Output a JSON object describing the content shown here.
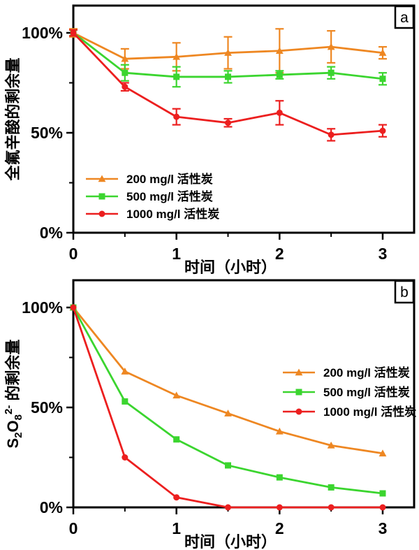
{
  "page": {
    "background": "#ffffff",
    "axis_color": "#000000"
  },
  "panels": [
    {
      "letter": "a"
    },
    {
      "letter": "b"
    }
  ],
  "chart_data": [
    {
      "panel_label": "a",
      "type": "line",
      "title": "",
      "xlabel": "时间（小时）",
      "ylabel": "全氟辛酸的剩余量",
      "ylabel_segments": [
        {
          "text": "全氟辛酸的剩余量"
        }
      ],
      "x": [
        0,
        0.5,
        1,
        1.5,
        2,
        2.5,
        3
      ],
      "xlim": [
        0,
        3.3
      ],
      "ylim_percent": [
        0,
        114
      ],
      "xticks": [
        {
          "v": 0,
          "label": "0"
        },
        {
          "v": 1,
          "label": "1"
        },
        {
          "v": 2,
          "label": "2"
        },
        {
          "v": 3,
          "label": "3"
        }
      ],
      "xminor": [
        0.5,
        1.5,
        2.5
      ],
      "yticks": [
        {
          "v": 0,
          "label": "0%"
        },
        {
          "v": 50,
          "label": "50%"
        },
        {
          "v": 100,
          "label": "100%"
        }
      ],
      "yminor": [
        25,
        75
      ],
      "grid": false,
      "error_bars": true,
      "legend_position": "inside-lower-left",
      "series": [
        {
          "name": "200 mg/l 活性炭",
          "color": "#EE8722",
          "marker": "triangle",
          "values": [
            100,
            87,
            88,
            90,
            91,
            93,
            90
          ],
          "errors": [
            2,
            5,
            7,
            8,
            11,
            8,
            3
          ]
        },
        {
          "name": "500 mg/l 活性炭",
          "color": "#3BD52F",
          "marker": "square",
          "values": [
            100,
            80,
            78,
            78,
            79,
            80,
            77
          ],
          "errors": [
            1.5,
            4,
            5,
            3,
            2,
            3,
            3
          ]
        },
        {
          "name": "1000 mg/l 活性炭",
          "color": "#EC1F1F",
          "marker": "circle",
          "values": [
            100,
            73,
            58,
            55,
            60,
            49,
            51
          ],
          "errors": [
            1.5,
            2,
            4,
            2,
            6,
            3,
            3
          ]
        }
      ]
    },
    {
      "panel_label": "b",
      "type": "line",
      "title": "",
      "xlabel": "时间（小时）",
      "ylabel": "S₂O₈²⁻ 的剩余量",
      "ylabel_segments": [
        {
          "text": "S"
        },
        {
          "text": "2",
          "shift": "sub"
        },
        {
          "text": "O"
        },
        {
          "text": "8",
          "shift": "sub"
        },
        {
          "text": "2-",
          "shift": "sup"
        },
        {
          "text": " 的剩余量"
        }
      ],
      "x": [
        0,
        0.5,
        1,
        1.5,
        2,
        2.5,
        3
      ],
      "xlim": [
        0,
        3.3
      ],
      "ylim_percent": [
        0,
        114
      ],
      "xticks": [
        {
          "v": 0,
          "label": "0"
        },
        {
          "v": 1,
          "label": "1"
        },
        {
          "v": 2,
          "label": "2"
        },
        {
          "v": 3,
          "label": "3"
        }
      ],
      "xminor": [
        0.5,
        1.5,
        2.5
      ],
      "yticks": [
        {
          "v": 0,
          "label": "0%"
        },
        {
          "v": 50,
          "label": "50%"
        },
        {
          "v": 100,
          "label": "100%"
        }
      ],
      "yminor": [
        25,
        75
      ],
      "grid": false,
      "error_bars": false,
      "legend_position": "inside-right",
      "series": [
        {
          "name": "200 mg/l 活性炭",
          "color": "#EE8722",
          "marker": "triangle",
          "values": [
            100,
            68,
            56,
            47,
            38,
            31,
            27
          ]
        },
        {
          "name": "500 mg/l 活性炭",
          "color": "#3BD52F",
          "marker": "square",
          "values": [
            100,
            53,
            34,
            21,
            15,
            10,
            7
          ]
        },
        {
          "name": "1000 mg/l 活性炭",
          "color": "#EC1F1F",
          "marker": "circle",
          "values": [
            100,
            25,
            5,
            0,
            0,
            0,
            0
          ]
        }
      ]
    }
  ]
}
